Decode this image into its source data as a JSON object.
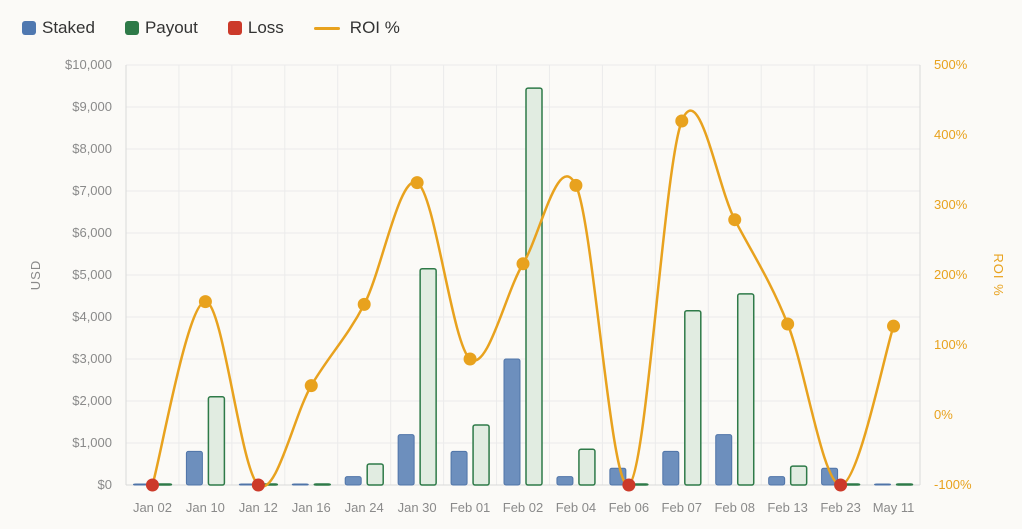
{
  "chart_data": {
    "type": "bar",
    "categories": [
      "Jan 02",
      "Jan 10",
      "Jan 12",
      "Jan 16",
      "Jan 24",
      "Jan 30",
      "Feb 01",
      "Feb 02",
      "Feb 04",
      "Feb 06",
      "Feb 07",
      "Feb 08",
      "Feb 13",
      "Feb 23",
      "May 11"
    ],
    "series": [
      {
        "name": "Staked",
        "type": "bar",
        "axis": "left",
        "values": [
          0,
          800,
          0,
          0,
          200,
          1200,
          800,
          3000,
          200,
          400,
          800,
          1200,
          200,
          400,
          0
        ]
      },
      {
        "name": "Payout",
        "type": "bar",
        "axis": "left",
        "values": [
          0,
          2100,
          0,
          0,
          500,
          5150,
          1430,
          9450,
          850,
          0,
          4150,
          4550,
          450,
          0,
          0
        ]
      },
      {
        "name": "Loss",
        "type": "point",
        "axis": "right",
        "values": [
          -100,
          null,
          -100,
          null,
          null,
          null,
          null,
          null,
          null,
          -100,
          null,
          null,
          null,
          -100,
          null
        ]
      },
      {
        "name": "ROI %",
        "type": "line",
        "axis": "right",
        "values": [
          -100,
          162,
          -100,
          42,
          158,
          332,
          80,
          216,
          328,
          -100,
          420,
          279,
          130,
          -100,
          127
        ]
      }
    ],
    "title": "",
    "ylabel": "USD",
    "y2label": "ROI %",
    "ylim": [
      0,
      10000
    ],
    "y2lim": [
      -100,
      500
    ],
    "yticks": [
      "$0",
      "$1,000",
      "$2,000",
      "$3,000",
      "$4,000",
      "$5,000",
      "$6,000",
      "$7,000",
      "$8,000",
      "$9,000",
      "$10,000"
    ],
    "y2ticks": [
      "-100%",
      "0%",
      "100%",
      "200%",
      "300%",
      "400%",
      "500%"
    ],
    "grid": true,
    "legend_position": "top-left",
    "colors": {
      "staked": "#6d8fbd",
      "staked_border": "#4f74a8",
      "payout_fill": "#e1ece1",
      "payout_border": "#2e7a48",
      "loss": "#cc3a2a",
      "roi": "#e8a21e",
      "grid": "#ebebeb"
    }
  },
  "legend": {
    "staked": "Staked",
    "payout": "Payout",
    "loss": "Loss",
    "roi": "ROI %"
  }
}
